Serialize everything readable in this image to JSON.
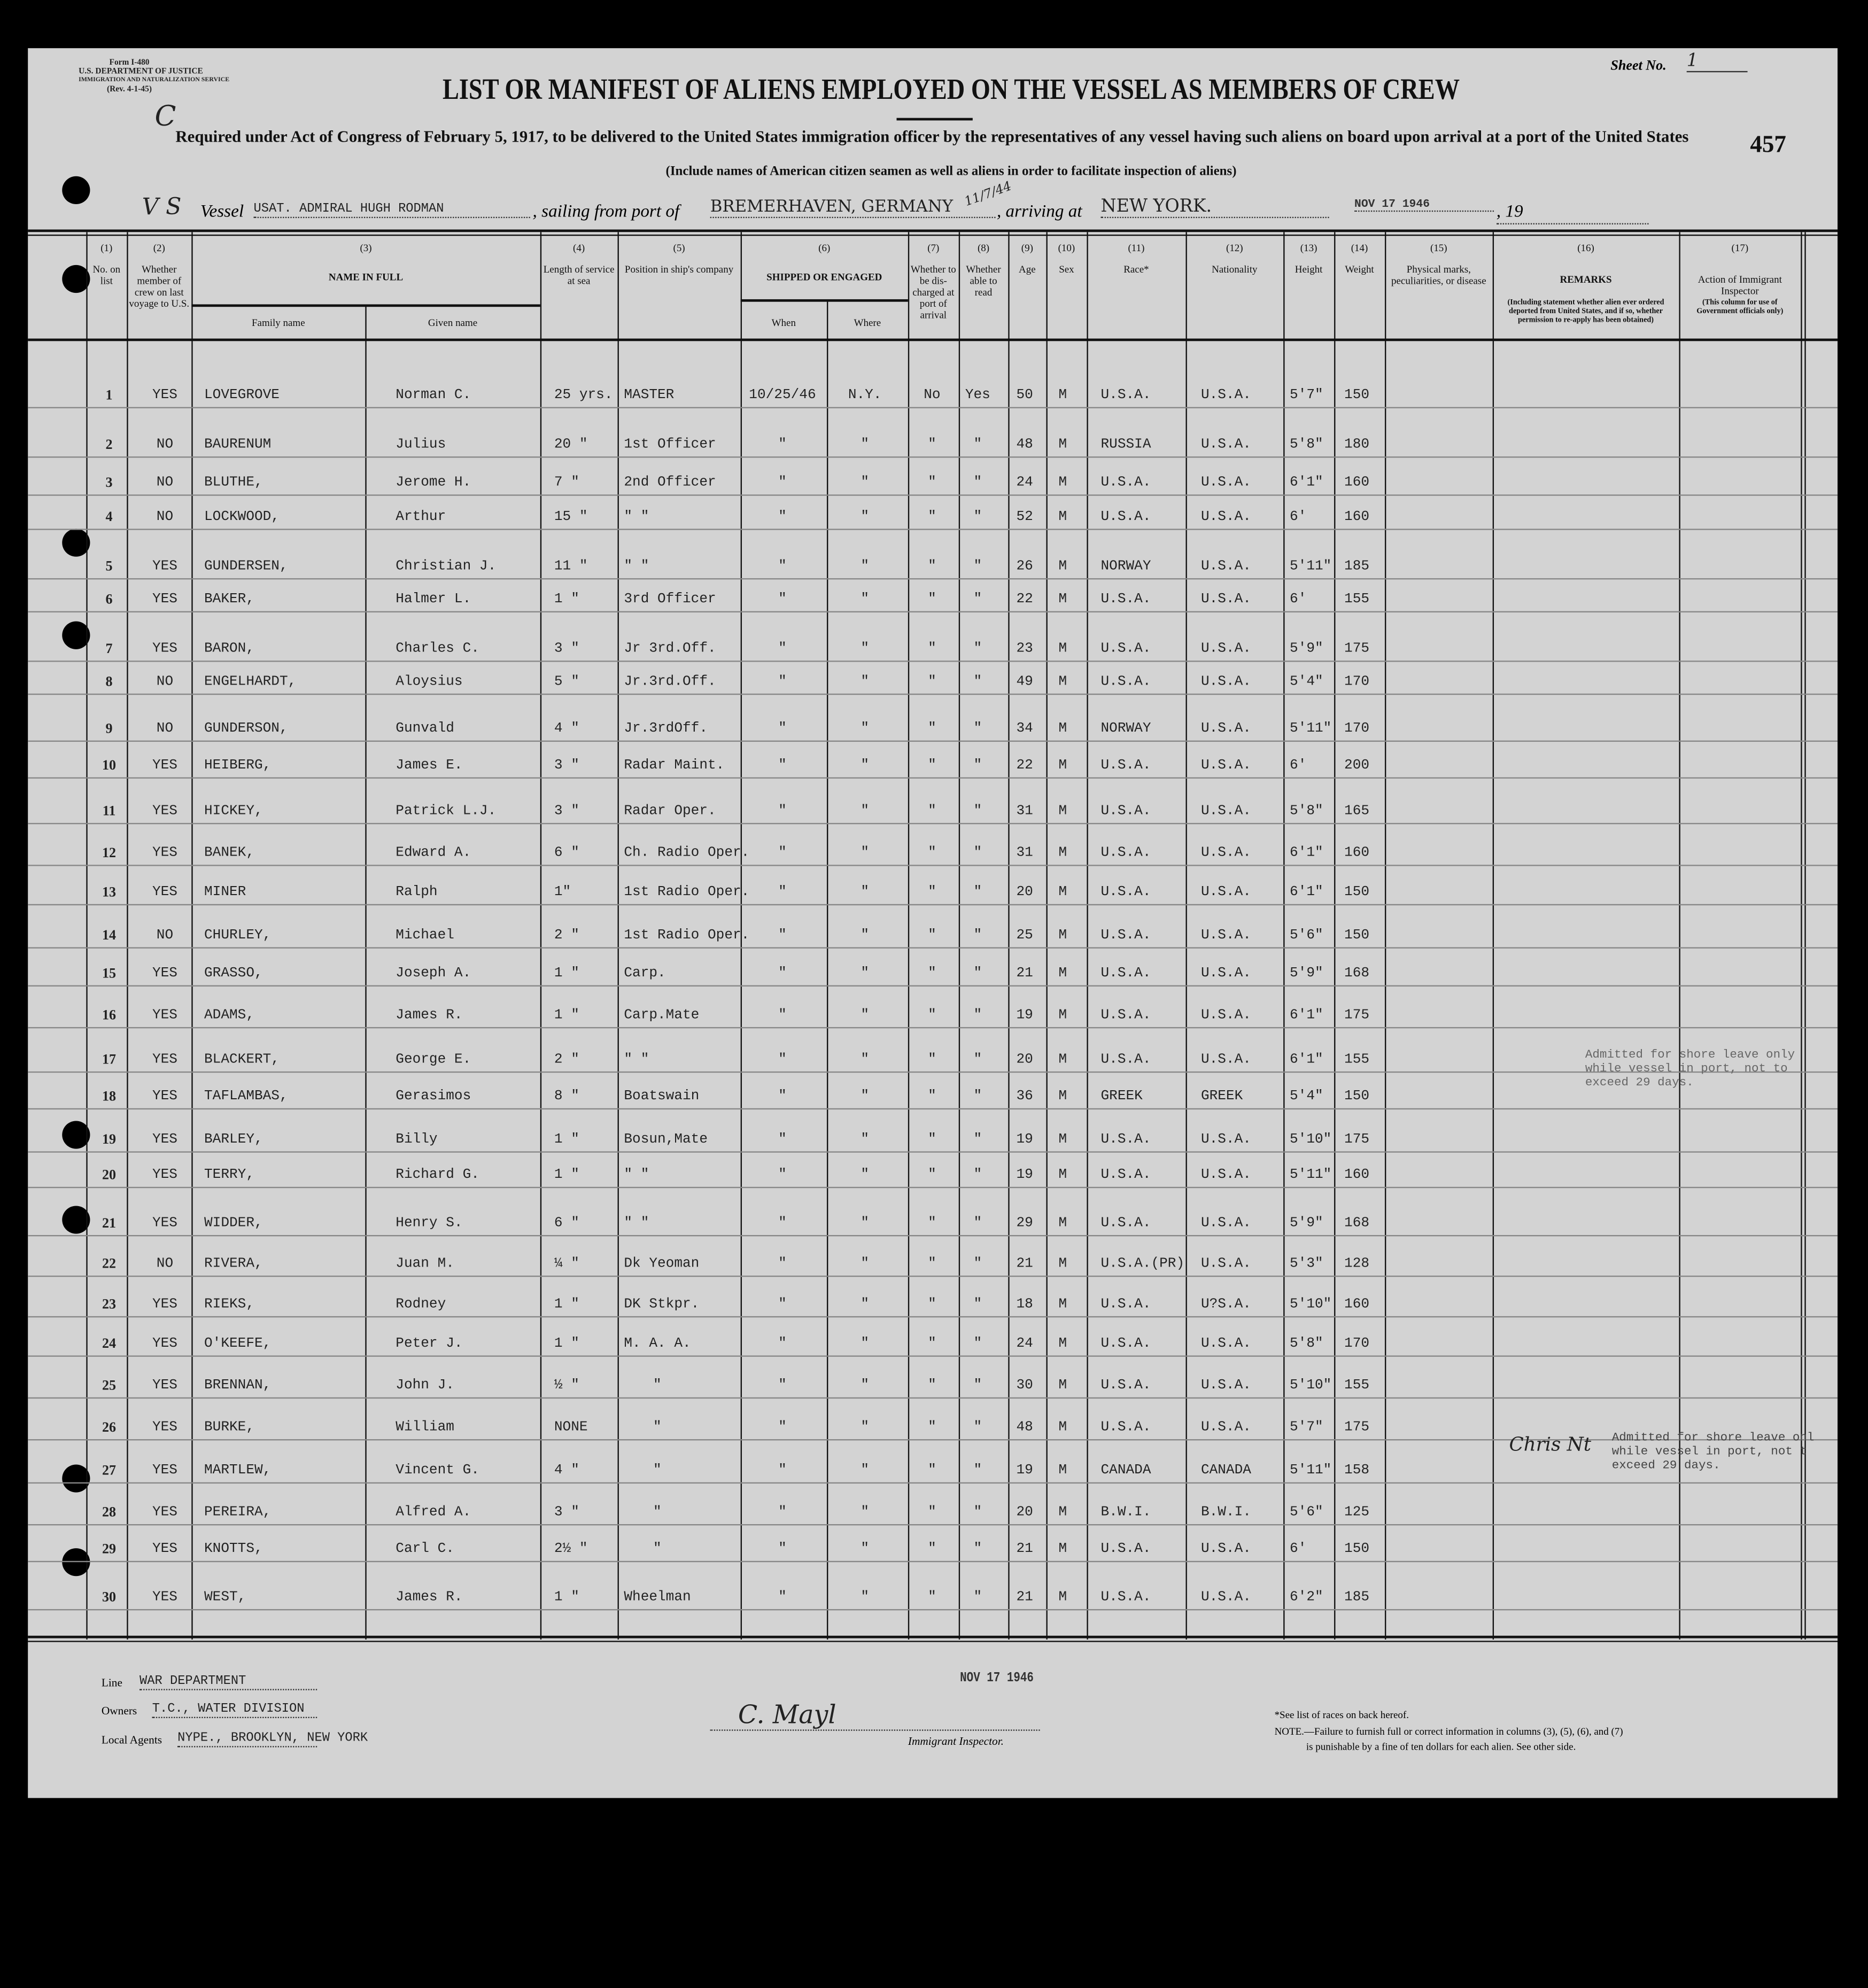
{
  "form": {
    "form_no": "Form I-480",
    "department": "U.S. DEPARTMENT OF JUSTICE",
    "service": "IMMIGRATION AND NATURALIZATION SERVICE",
    "revision": "(Rev. 4-1-45)",
    "sheet_label": "Sheet No.",
    "sheet_no": "1",
    "page_number": "457",
    "margin_mark": "C",
    "title": "LIST OR MANIFEST OF ALIENS EMPLOYED ON THE VESSEL AS MEMBERS OF CREW",
    "subtitle": "Required under Act of Congress of February 5, 1917, to be delivered to the United States immigration officer by the representatives of any vessel having such aliens on board upon arrival at a port of the United States",
    "instruction": "(Include names of American citizen seamen as well as aliens in order to facilitate inspection of aliens)"
  },
  "vessel_line": {
    "hand_prefix": "V S",
    "vessel_label": "Vessel",
    "vessel": "USAT. ADMIRAL HUGH RODMAN",
    "sailing_label": ", sailing from port of",
    "port": "BREMERHAVEN, GERMANY",
    "hand_date": "11/7/44",
    "arriving_label": ", arriving at",
    "arriving": "NEW YORK.",
    "date_stamp": "NOV 17 1946",
    "year_label": ", 19"
  },
  "columns": [
    {
      "num": "(1)",
      "label": "No. on list"
    },
    {
      "num": "(2)",
      "label": "Whether member of crew on last voyage to U.S."
    },
    {
      "num": "(3)",
      "label": "NAME IN FULL",
      "sub": [
        "Family name",
        "Given name"
      ]
    },
    {
      "num": "(4)",
      "label": "Length of service at sea"
    },
    {
      "num": "(5)",
      "label": "Position in ship's company"
    },
    {
      "num": "(6)",
      "label": "SHIPPED OR ENGAGED",
      "sub": [
        "When",
        "Where"
      ]
    },
    {
      "num": "(7)",
      "label": "Whether to be dis-charged at port of arrival"
    },
    {
      "num": "(8)",
      "label": "Whether able to read"
    },
    {
      "num": "(9)",
      "label": "Age"
    },
    {
      "num": "(10)",
      "label": "Sex"
    },
    {
      "num": "(11)",
      "label": "Race*"
    },
    {
      "num": "(12)",
      "label": "Nationality"
    },
    {
      "num": "(13)",
      "label": "Height"
    },
    {
      "num": "(14)",
      "label": "Weight"
    },
    {
      "num": "(15)",
      "label": "Physical marks, peculiarities, or disease"
    },
    {
      "num": "(16)",
      "label": "REMARKS",
      "note": "(Including statement whether alien ever ordered deported from United States, and if so, whether permission to re-apply has been obtained)"
    },
    {
      "num": "(17)",
      "label": "Action of Immigrant Inspector",
      "note": "(This column for use of Government officials only)"
    }
  ],
  "rows": [
    [
      "1",
      "YES",
      "LOVEGROVE",
      "Norman C.",
      "25 yrs.",
      "MASTER",
      "10/25/46",
      "N.Y.",
      "No",
      "Yes",
      "50",
      "M",
      "U.S.A.",
      "U.S.A.",
      "5'7\"",
      "150"
    ],
    [
      "2",
      "NO",
      "BAURENUM",
      "Julius",
      "20 \"",
      "1st Officer",
      "\"",
      "\"",
      "\"",
      "\"",
      "48",
      "M",
      "RUSSIA",
      "U.S.A.",
      "5'8\"",
      "180"
    ],
    [
      "3",
      "NO",
      "BLUTHE,",
      "Jerome H.",
      "7 \"",
      "2nd Officer",
      "\"",
      "\"",
      "\"",
      "\"",
      "24",
      "M",
      "U.S.A.",
      "U.S.A.",
      "6'1\"",
      "160"
    ],
    [
      "4",
      "NO",
      "LOCKWOOD,",
      "Arthur",
      "15 \"",
      "\"   \"",
      "\"",
      "\"",
      "\"",
      "\"",
      "52",
      "M",
      "U.S.A.",
      "U.S.A.",
      "6'",
      "160"
    ],
    [
      "5",
      "YES",
      "GUNDERSEN,",
      "Christian J.",
      "11 \"",
      "\"   \"",
      "\"",
      "\"",
      "\"",
      "\"",
      "26",
      "M",
      "NORWAY",
      "U.S.A.",
      "5'11\"",
      "185"
    ],
    [
      "6",
      "YES",
      "BAKER,",
      "Halmer L.",
      "1 \"",
      "3rd Officer",
      "\"",
      "\"",
      "\"",
      "\"",
      "22",
      "M",
      "U.S.A.",
      "U.S.A.",
      "6'",
      "155"
    ],
    [
      "7",
      "YES",
      "BARON,",
      "Charles C.",
      "3 \"",
      "Jr 3rd.Off.",
      "\"",
      "\"",
      "\"",
      "\"",
      "23",
      "M",
      "U.S.A.",
      "U.S.A.",
      "5'9\"",
      "175"
    ],
    [
      "8",
      "NO",
      "ENGELHARDT,",
      "Aloysius",
      "5 \"",
      "Jr.3rd.Off.",
      "\"",
      "\"",
      "\"",
      "\"",
      "49",
      "M",
      "U.S.A.",
      "U.S.A.",
      "5'4\"",
      "170"
    ],
    [
      "9",
      "NO",
      "GUNDERSON,",
      "Gunvald",
      "4 \"",
      "Jr.3rdOff.",
      "\"",
      "\"",
      "\"",
      "\"",
      "34",
      "M",
      "NORWAY",
      "U.S.A.",
      "5'11\"",
      "170"
    ],
    [
      "10",
      "YES",
      "HEIBERG,",
      "James E.",
      "3 \"",
      "Radar Maint.",
      "\"",
      "\"",
      "\"",
      "\"",
      "22",
      "M",
      "U.S.A.",
      "U.S.A.",
      "6'",
      "200"
    ],
    [
      "11",
      "YES",
      "HICKEY,",
      "Patrick L.J.",
      "3 \"",
      "Radar Oper.",
      "\"",
      "\"",
      "\"",
      "\"",
      "31",
      "M",
      "U.S.A.",
      "U.S.A.",
      "5'8\"",
      "165"
    ],
    [
      "12",
      "YES",
      "BANEK,",
      "Edward A.",
      "6 \"",
      "Ch. Radio Oper.",
      "\"",
      "\"",
      "\"",
      "\"",
      "31",
      "M",
      "U.S.A.",
      "U.S.A.",
      "6'1\"",
      "160"
    ],
    [
      "13",
      "YES",
      "MINER",
      "Ralph",
      "1\"",
      "1st Radio Oper.",
      "\"",
      "\"",
      "\"",
      "\"",
      "20",
      "M",
      "U.S.A.",
      "U.S.A.",
      "6'1\"",
      "150"
    ],
    [
      "14",
      "NO",
      "CHURLEY,",
      "Michael",
      "2 \"",
      "1st Radio Oper.",
      "\"",
      "\"",
      "\"",
      "\"",
      "25",
      "M",
      "U.S.A.",
      "U.S.A.",
      "5'6\"",
      "150"
    ],
    [
      "15",
      "YES",
      "GRASSO,",
      "Joseph A.",
      "1 \"",
      "Carp.",
      "\"",
      "\"",
      "\"",
      "\"",
      "21",
      "M",
      "U.S.A.",
      "U.S.A.",
      "5'9\"",
      "168"
    ],
    [
      "16",
      "YES",
      "ADAMS,",
      "James R.",
      "1 \"",
      "Carp.Mate",
      "\"",
      "\"",
      "\"",
      "\"",
      "19",
      "M",
      "U.S.A.",
      "U.S.A.",
      "6'1\"",
      "175"
    ],
    [
      "17",
      "YES",
      "BLACKERT,",
      "George E.",
      "2 \"",
      "\"   \"",
      "\"",
      "\"",
      "\"",
      "\"",
      "20",
      "M",
      "U.S.A.",
      "U.S.A.",
      "6'1\"",
      "155"
    ],
    [
      "18",
      "YES",
      "TAFLAMBAS,",
      "Gerasimos",
      "8 \"",
      "Boatswain",
      "\"",
      "\"",
      "\"",
      "\"",
      "36",
      "M",
      "GREEK",
      "GREEK",
      "5'4\"",
      "150"
    ],
    [
      "19",
      "YES",
      "BARLEY,",
      "Billy",
      "1 \"",
      "Bosun,Mate",
      "\"",
      "\"",
      "\"",
      "\"",
      "19",
      "M",
      "U.S.A.",
      "U.S.A.",
      "5'10\"",
      "175"
    ],
    [
      "20",
      "YES",
      "TERRY,",
      "Richard G.",
      "1 \"",
      "\"   \"",
      "\"",
      "\"",
      "\"",
      "\"",
      "19",
      "M",
      "U.S.A.",
      "U.S.A.",
      "5'11\"",
      "160"
    ],
    [
      "21",
      "YES",
      "WIDDER,",
      "Henry S.",
      "6 \"",
      "\"   \"",
      "\"",
      "\"",
      "\"",
      "\"",
      "29",
      "M",
      "U.S.A.",
      "U.S.A.",
      "5'9\"",
      "168"
    ],
    [
      "22",
      "NO",
      "RIVERA,",
      "Juan M.",
      "¼ \"",
      "Dk Yeoman",
      "\"",
      "\"",
      "\"",
      "\"",
      "21",
      "M",
      "U.S.A.(PR)",
      "U.S.A.",
      "5'3\"",
      "128"
    ],
    [
      "23",
      "YES",
      "RIEKS,",
      "Rodney",
      "1 \"",
      "DK Stkpr.",
      "\"",
      "\"",
      "\"",
      "\"",
      "18",
      "M",
      "U.S.A.",
      "U?S.A.",
      "5'10\"",
      "160"
    ],
    [
      "24",
      "YES",
      "O'KEEFE,",
      "Peter J.",
      "1 \"",
      "M. A. A.",
      "\"",
      "\"",
      "\"",
      "\"",
      "24",
      "M",
      "U.S.A.",
      "U.S.A.",
      "5'8\"",
      "170"
    ],
    [
      "25",
      "YES",
      "BRENNAN,",
      "John J.",
      "½ \"",
      "\"",
      "\"",
      "\"",
      "\"",
      "\"",
      "30",
      "M",
      "U.S.A.",
      "U.S.A.",
      "5'10\"",
      "155"
    ],
    [
      "26",
      "YES",
      "BURKE,",
      "William",
      "NONE",
      "\"",
      "\"",
      "\"",
      "\"",
      "\"",
      "48",
      "M",
      "U.S.A.",
      "U.S.A.",
      "5'7\"",
      "175"
    ],
    [
      "27",
      "YES",
      "MARTLEW,",
      "Vincent G.",
      "4 \"",
      "\"",
      "\"",
      "\"",
      "\"",
      "\"",
      "19",
      "M",
      "CANADA",
      "CANADA",
      "5'11\"",
      "158"
    ],
    [
      "28",
      "YES",
      "PEREIRA,",
      "Alfred A.",
      "3 \"",
      "\"",
      "\"",
      "\"",
      "\"",
      "\"",
      "20",
      "M",
      "B.W.I.",
      "B.W.I.",
      "5'6\"",
      "125"
    ],
    [
      "29",
      "YES",
      "KNOTTS,",
      "Carl C.",
      "2½ \"",
      "\"",
      "\"",
      "\"",
      "\"",
      "\"",
      "21",
      "M",
      "U.S.A.",
      "U.S.A.",
      "6'",
      "150"
    ],
    [
      "30",
      "YES",
      "WEST,",
      "James R.",
      "1 \"",
      "Wheelman",
      "\"",
      "\"",
      "\"",
      "\"",
      "21",
      "M",
      "U.S.A.",
      "U.S.A.",
      "6'2\"",
      "185"
    ]
  ],
  "remarks": [
    {
      "text": "Admitted for shore leave only\nwhile vessel in port, not to\nexceed 29 days."
    },
    {
      "text": "Admitted for shore leave onl\nwhile vessel in port, not t\nexceed 29 days.",
      "handwritten": "Chris Nt"
    }
  ],
  "footer": {
    "line_label": "Line",
    "line": "WAR DEPARTMENT",
    "owners_label": "Owners",
    "owners": "T.C., WATER DIVISION",
    "agents_label": "Local Agents",
    "agents": "NYPE., BROOKLYN, NEW YORK",
    "date_stamp": "NOV 17 1946",
    "inspector_signature": "C. Mayl",
    "inspector_label": "Immigrant Inspector.",
    "race_note": "*See list of races on back hereof.",
    "note_line1": "NOTE.—Failure to furnish full or correct information in columns (3), (5), (6), and (7)",
    "note_line2": "is punishable by a fine of ten dollars for each alien.  See other side."
  },
  "colors": {
    "paper": "#d3d3d3",
    "ink": "#222222",
    "background": "#000000"
  }
}
